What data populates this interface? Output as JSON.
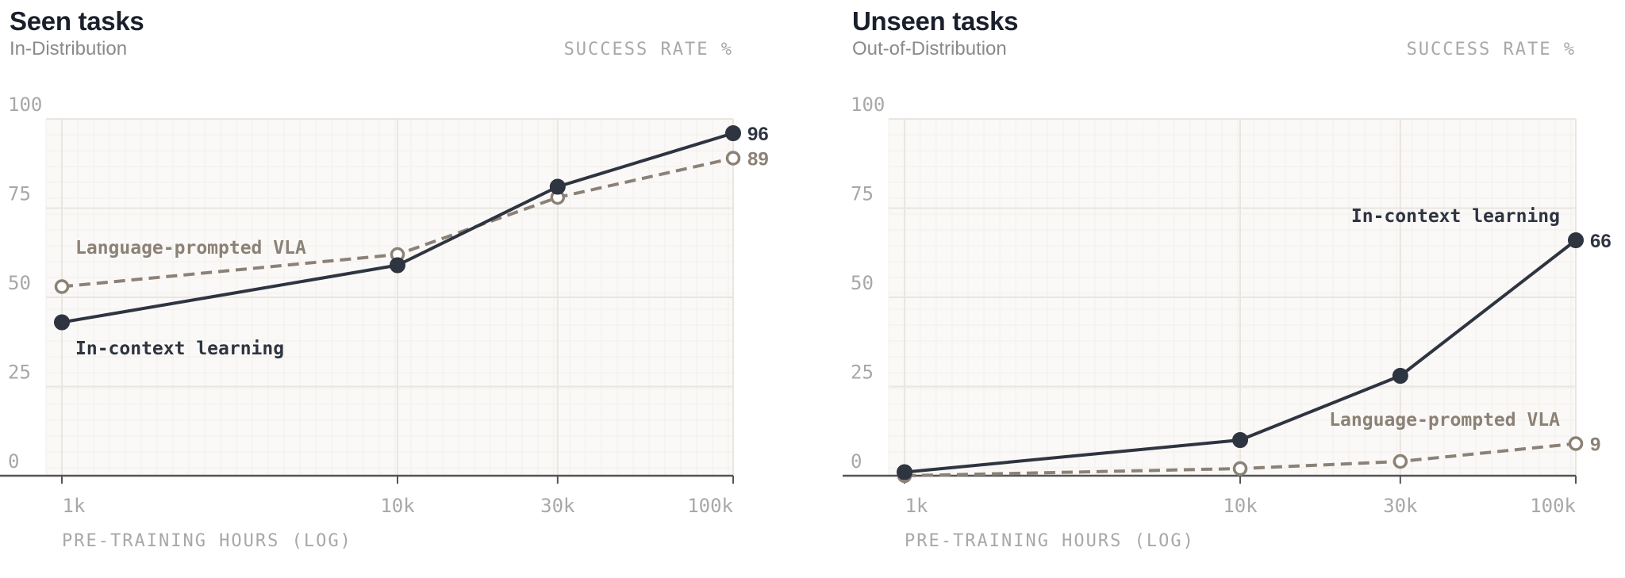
{
  "colors": {
    "icl": "#2e3440",
    "vla": "#8c8176",
    "grid": "#e9e6e1",
    "minor_grid": "#f1efeb",
    "plot_bg": "#faf9f7",
    "axis": "#555555",
    "tick_text": "#a8a8a8"
  },
  "chart_data": [
    {
      "type": "line",
      "title": "Seen tasks",
      "subtitle": "In-Distribution",
      "ylabel": "SUCCESS RATE %",
      "xlabel": "PRE-TRAINING HOURS (LOG)",
      "x_scale": "log",
      "x": [
        1000,
        10000,
        30000,
        100000
      ],
      "x_tick_labels": [
        "1k",
        "10k",
        "30k",
        "100k"
      ],
      "ylim": [
        0,
        100
      ],
      "y_ticks": [
        0,
        25,
        50,
        75,
        100
      ],
      "grid": true,
      "series": [
        {
          "name": "In-context learning",
          "values": [
            43,
            59,
            81,
            96
          ],
          "style": "solid-filled",
          "end_label": "96"
        },
        {
          "name": "Language-prompted VLA",
          "values": [
            53,
            62,
            78,
            89
          ],
          "style": "dashed-hollow",
          "end_label": "89"
        }
      ]
    },
    {
      "type": "line",
      "title": "Unseen tasks",
      "subtitle": "Out-of-Distribution",
      "ylabel": "SUCCESS RATE %",
      "xlabel": "PRE-TRAINING HOURS (LOG)",
      "x_scale": "log",
      "x": [
        1000,
        10000,
        30000,
        100000
      ],
      "x_tick_labels": [
        "1k",
        "10k",
        "30k",
        "100k"
      ],
      "ylim": [
        0,
        100
      ],
      "y_ticks": [
        0,
        25,
        50,
        75,
        100
      ],
      "grid": true,
      "series": [
        {
          "name": "In-context learning",
          "values": [
            1,
            10,
            28,
            66
          ],
          "style": "solid-filled",
          "end_label": "66"
        },
        {
          "name": "Language-prompted VLA",
          "values": [
            0,
            2,
            4,
            9
          ],
          "style": "dashed-hollow",
          "end_label": "9"
        }
      ]
    }
  ]
}
